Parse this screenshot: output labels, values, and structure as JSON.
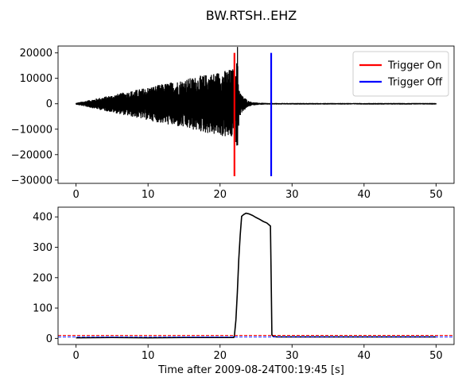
{
  "chart_data": [
    {
      "type": "line",
      "title": "BW.RTSH..EHZ",
      "xlabel": "",
      "ylabel": "",
      "xlim": [
        -2.5,
        52.5
      ],
      "ylim": [
        -31300,
        22700
      ],
      "x_ticks": [
        0,
        10,
        20,
        30,
        40,
        50
      ],
      "y_ticks": [
        -30000,
        -20000,
        -10000,
        0,
        10000,
        20000
      ],
      "series": [
        {
          "name": "",
          "color": "#000000",
          "kind": "waveform",
          "x": [
            0,
            22.0,
            22.1,
            22.2,
            22.3,
            22.4,
            22.5,
            22.6,
            22.7,
            22.8,
            22.9,
            23.0,
            23.2,
            23.4,
            23.6,
            23.8,
            24.0,
            24.5,
            25.0,
            26.0,
            27.0,
            28.0,
            50
          ],
          "amplitude": [
            350,
            14000,
            9000,
            18000,
            16000,
            26500,
            12000,
            9000,
            6000,
            5000,
            4000,
            3500,
            3000,
            2500,
            2000,
            1500,
            1100,
            700,
            500,
            350,
            300,
            300,
            300
          ]
        },
        {
          "name": "Trigger On",
          "color": "#ff0000",
          "kind": "vline",
          "x": [
            22.0,
            22.0
          ],
          "y": [
            -28500,
            20000
          ]
        },
        {
          "name": "Trigger Off",
          "color": "#0000ff",
          "kind": "vline",
          "x": [
            27.1,
            27.1
          ],
          "y": [
            -28500,
            20000
          ]
        }
      ],
      "legend": {
        "position": "top-right",
        "entries": [
          "Trigger On",
          "Trigger Off"
        ]
      },
      "grid": false
    },
    {
      "type": "line",
      "title": "",
      "xlabel": "Time after 2009-08-24T00:19:45 [s]",
      "ylabel": "",
      "xlim": [
        -2.5,
        52.5
      ],
      "ylim": [
        -20,
        432
      ],
      "x_ticks": [
        0,
        10,
        20,
        30,
        40,
        50
      ],
      "y_ticks": [
        0,
        100,
        200,
        300,
        400
      ],
      "series": [
        {
          "name": "",
          "color": "#000000",
          "kind": "line",
          "x": [
            0,
            5,
            10,
            15,
            20,
            21.9,
            22.0,
            22.2,
            22.4,
            22.6,
            22.8,
            23.0,
            23.3,
            23.6,
            24.0,
            24.5,
            25.0,
            25.5,
            26.0,
            26.5,
            26.9,
            27.0,
            27.1,
            27.2,
            27.4,
            28,
            30,
            40,
            50
          ],
          "y": [
            2,
            3,
            2,
            3,
            3,
            3,
            10,
            60,
            150,
            260,
            340,
            402,
            408,
            412,
            410,
            405,
            398,
            392,
            385,
            380,
            372,
            370,
            200,
            12,
            6,
            5,
            5,
            5,
            5
          ]
        },
        {
          "name": "",
          "color": "#ff0000",
          "kind": "hline-dashed",
          "y": 10
        },
        {
          "name": "",
          "color": "#0000ff",
          "kind": "hline-dashed",
          "y": 5
        }
      ],
      "grid": false
    }
  ]
}
